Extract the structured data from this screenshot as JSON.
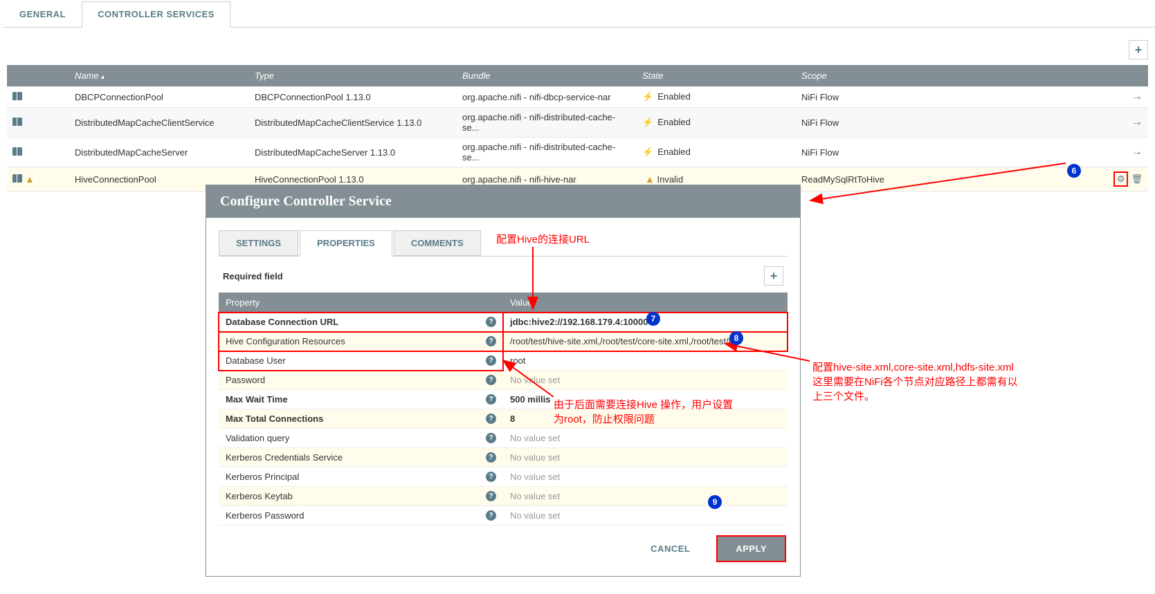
{
  "tabs": {
    "general": "GENERAL",
    "controller_services": "CONTROLLER SERVICES"
  },
  "table": {
    "headers": {
      "name": "Name",
      "type": "Type",
      "bundle": "Bundle",
      "state": "State",
      "scope": "Scope"
    },
    "rows": [
      {
        "name": "DBCPConnectionPool",
        "type": "DBCPConnectionPool 1.13.0",
        "bundle": "org.apache.nifi - nifi-dbcp-service-nar",
        "state": "Enabled",
        "state_kind": "enabled",
        "scope": "NiFi Flow",
        "warn": false,
        "highlighted": false,
        "show_gear": false
      },
      {
        "name": "DistributedMapCacheClientService",
        "type": "DistributedMapCacheClientService 1.13.0",
        "bundle": "org.apache.nifi - nifi-distributed-cache-se...",
        "state": "Enabled",
        "state_kind": "enabled",
        "scope": "NiFi Flow",
        "warn": false,
        "highlighted": false,
        "show_gear": false
      },
      {
        "name": "DistributedMapCacheServer",
        "type": "DistributedMapCacheServer 1.13.0",
        "bundle": "org.apache.nifi - nifi-distributed-cache-se...",
        "state": "Enabled",
        "state_kind": "enabled",
        "scope": "NiFi Flow",
        "warn": false,
        "highlighted": false,
        "show_gear": false
      },
      {
        "name": "HiveConnectionPool",
        "type": "HiveConnectionPool 1.13.0",
        "bundle": "org.apache.nifi - nifi-hive-nar",
        "state": "Invalid",
        "state_kind": "invalid",
        "scope": "ReadMySqlRtToHive",
        "warn": true,
        "highlighted": true,
        "show_gear": true
      }
    ]
  },
  "dialog": {
    "title": "Configure Controller Service",
    "tabs": {
      "settings": "SETTINGS",
      "properties": "PROPERTIES",
      "comments": "COMMENTS"
    },
    "required_label": "Required field",
    "prop_header": {
      "property": "Property",
      "value": "Value"
    },
    "props": [
      {
        "name": "Database Connection URL",
        "value": "jdbc:hive2://192.168.179.4:10000",
        "bold_name": true,
        "bold_val": true,
        "novalue": false,
        "redbox_name": true,
        "redbox_val": true,
        "hi": false
      },
      {
        "name": "Hive Configuration Resources",
        "value": "/root/test/hive-site.xml,/root/test/core-site.xml,/root/test/h...",
        "bold_name": false,
        "bold_val": false,
        "novalue": false,
        "redbox_name": true,
        "redbox_val": true,
        "hi": true
      },
      {
        "name": "Database User",
        "value": "root",
        "bold_name": false,
        "bold_val": false,
        "novalue": false,
        "redbox_name": true,
        "redbox_val": false,
        "hi": false
      },
      {
        "name": "Password",
        "value": "No value set",
        "bold_name": false,
        "bold_val": false,
        "novalue": true,
        "redbox_name": false,
        "redbox_val": false,
        "hi": true
      },
      {
        "name": "Max Wait Time",
        "value": "500 millis",
        "bold_name": true,
        "bold_val": true,
        "novalue": false,
        "redbox_name": false,
        "redbox_val": false,
        "hi": false
      },
      {
        "name": "Max Total Connections",
        "value": "8",
        "bold_name": true,
        "bold_val": true,
        "novalue": false,
        "redbox_name": false,
        "redbox_val": false,
        "hi": true
      },
      {
        "name": "Validation query",
        "value": "No value set",
        "bold_name": false,
        "bold_val": false,
        "novalue": true,
        "redbox_name": false,
        "redbox_val": false,
        "hi": false
      },
      {
        "name": "Kerberos Credentials Service",
        "value": "No value set",
        "bold_name": false,
        "bold_val": false,
        "novalue": true,
        "redbox_name": false,
        "redbox_val": false,
        "hi": true
      },
      {
        "name": "Kerberos Principal",
        "value": "No value set",
        "bold_name": false,
        "bold_val": false,
        "novalue": true,
        "redbox_name": false,
        "redbox_val": false,
        "hi": false
      },
      {
        "name": "Kerberos Keytab",
        "value": "No value set",
        "bold_name": false,
        "bold_val": false,
        "novalue": true,
        "redbox_name": false,
        "redbox_val": false,
        "hi": true
      },
      {
        "name": "Kerberos Password",
        "value": "No value set",
        "bold_name": false,
        "bold_val": false,
        "novalue": true,
        "redbox_name": false,
        "redbox_val": false,
        "hi": false
      }
    ],
    "buttons": {
      "cancel": "CANCEL",
      "apply": "APPLY"
    }
  },
  "annotations": {
    "url_label": "配置Hive的连接URL",
    "user_label1": "由于后面需要连接Hive 操作，用户设置",
    "user_label2": "为root，防止权限问题",
    "xml_label1": "配置hive-site.xml,core-site.xml,hdfs-site.xml",
    "xml_label2": "这里需要在NiFi各个节点对应路径上都需有以",
    "xml_label3": "上三个文件。",
    "n6": "6",
    "n7": "7",
    "n8": "8",
    "n9": "9"
  },
  "colors": {
    "header_bg": "#838f94",
    "accent": "#5a7c88",
    "badge": "#0033cc",
    "red": "#ff0000",
    "highlight_row": "#fffceb",
    "bolt": "#3498db",
    "warn": "#d4a030"
  }
}
